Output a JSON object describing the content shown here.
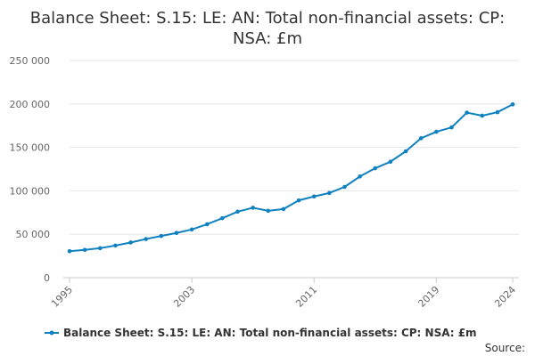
{
  "chart_data": {
    "type": "line",
    "title_lines": [
      "Balance Sheet: S.15: LE: AN: Total non-financial assets: CP:",
      "NSA: £m"
    ],
    "x": [
      1995,
      1996,
      1997,
      1998,
      1999,
      2000,
      2001,
      2002,
      2003,
      2004,
      2005,
      2006,
      2007,
      2008,
      2009,
      2010,
      2011,
      2012,
      2013,
      2014,
      2015,
      2016,
      2017,
      2018,
      2019,
      2020,
      2021,
      2022,
      2023,
      2024
    ],
    "series": [
      {
        "name": "Balance Sheet: S.15: LE: AN: Total non-financial assets: CP: NSA: £m",
        "color": "#0f80c0",
        "values": [
          30500,
          32000,
          34000,
          37000,
          40500,
          44500,
          48000,
          51500,
          55500,
          61500,
          68500,
          76000,
          80500,
          77000,
          79000,
          89000,
          93500,
          97500,
          104500,
          116500,
          126000,
          133500,
          145500,
          160500,
          168000,
          173000,
          190000,
          186500,
          190500,
          199500
        ]
      }
    ],
    "xticks": [
      1995,
      2003,
      2011,
      2019,
      2024
    ],
    "yticks": [
      0,
      50000,
      100000,
      150000,
      200000,
      250000
    ],
    "ytick_labels": [
      "0",
      "50 000",
      "100 000",
      "150 000",
      "200 000",
      "250 000"
    ],
    "xlim": [
      1995,
      2024
    ],
    "ylim": [
      0,
      250000
    ],
    "grid": true,
    "legend_position": "bottom",
    "source_label": "Source:"
  }
}
